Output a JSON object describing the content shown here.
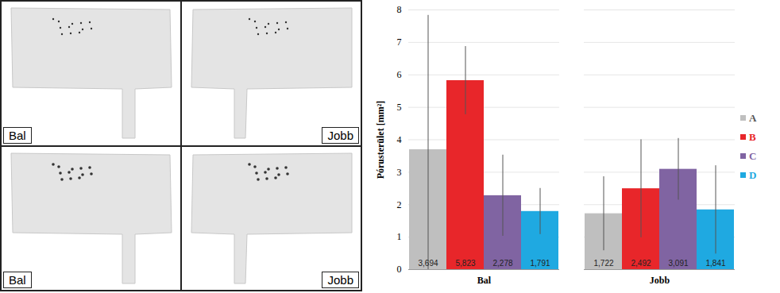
{
  "chart_data": {
    "type": "bar",
    "y_label": "Pórusterület [mm²]",
    "categories": [
      "Bal",
      "Jobb"
    ],
    "series": [
      {
        "name": "A",
        "color": "#bfbfbf",
        "values": [
          3.694,
          1.722
        ],
        "value_labels": [
          "3,694",
          "1,722"
        ],
        "errors": [
          4.14,
          1.14
        ]
      },
      {
        "name": "B",
        "color": "#e8262a",
        "values": [
          5.823,
          2.492
        ],
        "value_labels": [
          "5,823",
          "2,492"
        ],
        "errors": [
          1.05,
          1.51
        ]
      },
      {
        "name": "C",
        "color": "#8064a2",
        "values": [
          2.278,
          3.091
        ],
        "value_labels": [
          "2,278",
          "3,091"
        ],
        "errors": [
          1.25,
          0.95
        ]
      },
      {
        "name": "D",
        "color": "#1fa9e1",
        "values": [
          1.791,
          1.841
        ],
        "value_labels": [
          "1,791",
          "1,841"
        ],
        "errors": [
          0.71,
          1.36
        ]
      }
    ],
    "ylim": [
      0,
      8
    ],
    "yticks": [
      0,
      1,
      2,
      3,
      4,
      5,
      6,
      7,
      8
    ],
    "grid": true,
    "legend": "right",
    "data_labels": true
  },
  "photos": {
    "labels": [
      "Bal",
      "Jobb",
      "Bal",
      "Jobb"
    ]
  }
}
